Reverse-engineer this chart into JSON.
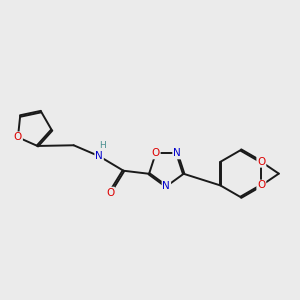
{
  "background_color": "#ebebeb",
  "bond_color": "#1a1a1a",
  "atom_colors": {
    "O": "#dd0000",
    "N": "#0000cc",
    "H": "#4a9090",
    "C": "#1a1a1a"
  },
  "bond_width": 1.4,
  "figsize": [
    3.0,
    3.0
  ],
  "dpi": 100
}
